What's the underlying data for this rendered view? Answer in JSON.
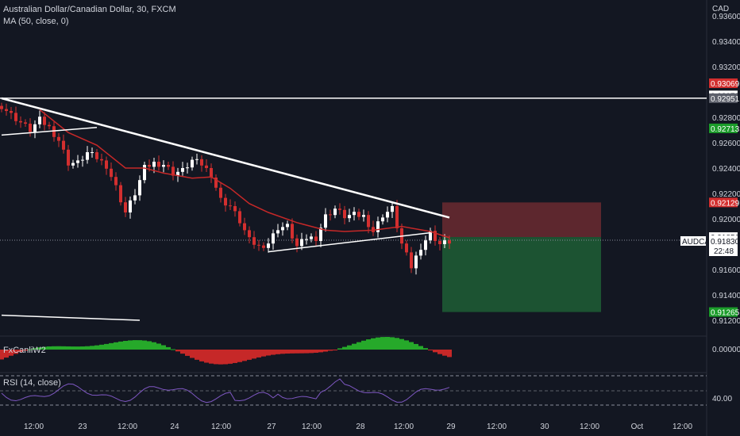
{
  "header": {
    "symbol_title": "Australian Dollar/Canadian Dollar, 30, FXCM",
    "ma_label": "MA (50, close, 0)",
    "currency": "CAD"
  },
  "indicators": {
    "osc_label": "FxCanliW2",
    "osc_zero": "0.00000",
    "rsi_label": "RSI (14, close)",
    "rsi_tick": "40.00"
  },
  "colors": {
    "background": "#131722",
    "up": "#ffffff",
    "down": "#d32f2f",
    "ma": "#c62828",
    "stop_zone": "#6b2a30",
    "target_zone": "#1e5a34",
    "rsi": "#7e57c2",
    "osc_pos": "#26a92a",
    "osc_neg": "#c62828"
  },
  "chart_data": {
    "type": "candlestick",
    "title": "Australian Dollar/Canadian Dollar, 30, FXCM",
    "ylim": [
      0.9115,
      0.9375
    ],
    "y_ticks": [
      "0.93600",
      "0.93400",
      "0.93200",
      "0.92800",
      "0.92600",
      "0.92400",
      "0.92200",
      "0.92000",
      "0.91600",
      "0.91400",
      "0.91200"
    ],
    "x_ticks": [
      "12:00",
      "23",
      "12:00",
      "24",
      "12:00",
      "27",
      "12:00",
      "28",
      "12:00",
      "29",
      "12:00",
      "30",
      "12:00",
      "Oct",
      "12:00"
    ],
    "symbol_tag": {
      "label": "AUDCAD",
      "price": "0.91830",
      "countdown": "22:48"
    },
    "price_tags": [
      {
        "value": "0.93069",
        "level": 0.93069,
        "style": "red"
      },
      {
        "value": "0.92973",
        "level": 0.92973,
        "style": "white"
      },
      {
        "value": "0.92951",
        "level": 0.92951,
        "style": "grey"
      },
      {
        "value": "0.92713",
        "level": 0.92713,
        "style": "green"
      },
      {
        "value": "0.92129",
        "level": 0.92129,
        "style": "red"
      },
      {
        "value": "0.91856",
        "level": 0.91856,
        "style": "white"
      },
      {
        "value": "0.91265",
        "level": 0.91265,
        "style": "green"
      }
    ],
    "horizontal_line": 0.92951,
    "position": {
      "entry": 0.91856,
      "stop": 0.92129,
      "target": 0.91265
    },
    "trendlines": [
      {
        "from": [
          0,
          0.9295
        ],
        "to": [
          94,
          0.9201
        ]
      },
      {
        "from": [
          0,
          0.9266
        ],
        "to": [
          20,
          0.9272
        ]
      },
      {
        "from": [
          56,
          0.9174
        ],
        "to": [
          90,
          0.9189
        ]
      },
      {
        "from": [
          0,
          0.9124
        ],
        "to": [
          29,
          0.912
        ]
      }
    ],
    "close_path": [
      [
        0,
        0.9289
      ],
      [
        2,
        0.9282
      ],
      [
        4,
        0.9276
      ],
      [
        6,
        0.927
      ],
      [
        8,
        0.9278
      ],
      [
        10,
        0.9272
      ],
      [
        12,
        0.9262
      ],
      [
        14,
        0.9244
      ],
      [
        16,
        0.9244
      ],
      [
        18,
        0.9252
      ],
      [
        20,
        0.9248
      ],
      [
        22,
        0.9242
      ],
      [
        24,
        0.9225
      ],
      [
        26,
        0.9205
      ],
      [
        28,
        0.922
      ],
      [
        30,
        0.924
      ],
      [
        32,
        0.9244
      ],
      [
        34,
        0.9243
      ],
      [
        36,
        0.9236
      ],
      [
        38,
        0.9238
      ],
      [
        40,
        0.9246
      ],
      [
        42,
        0.9243
      ],
      [
        44,
        0.9235
      ],
      [
        46,
        0.9215
      ],
      [
        48,
        0.921
      ],
      [
        50,
        0.9198
      ],
      [
        52,
        0.9183
      ],
      [
        54,
        0.9178
      ],
      [
        56,
        0.9181
      ],
      [
        58,
        0.9193
      ],
      [
        60,
        0.9194
      ],
      [
        62,
        0.9178
      ],
      [
        64,
        0.9185
      ],
      [
        66,
        0.9185
      ],
      [
        68,
        0.9202
      ],
      [
        70,
        0.9208
      ],
      [
        72,
        0.9202
      ],
      [
        74,
        0.9203
      ],
      [
        76,
        0.9202
      ],
      [
        78,
        0.919
      ],
      [
        80,
        0.9203
      ],
      [
        82,
        0.9208
      ],
      [
        84,
        0.918
      ],
      [
        86,
        0.9162
      ],
      [
        88,
        0.9178
      ],
      [
        90,
        0.9189
      ],
      [
        92,
        0.918
      ],
      [
        94,
        0.9182
      ]
    ],
    "ma_path": [
      [
        8,
        0.9286
      ],
      [
        14,
        0.9268
      ],
      [
        20,
        0.9258
      ],
      [
        26,
        0.924
      ],
      [
        30,
        0.924
      ],
      [
        34,
        0.9236
      ],
      [
        40,
        0.9232
      ],
      [
        44,
        0.9233
      ],
      [
        48,
        0.9224
      ],
      [
        52,
        0.9212
      ],
      [
        56,
        0.9205
      ],
      [
        62,
        0.9197
      ],
      [
        68,
        0.9191
      ],
      [
        72,
        0.919
      ],
      [
        78,
        0.9191
      ],
      [
        84,
        0.9194
      ],
      [
        90,
        0.919
      ],
      [
        94,
        0.9185
      ]
    ]
  }
}
